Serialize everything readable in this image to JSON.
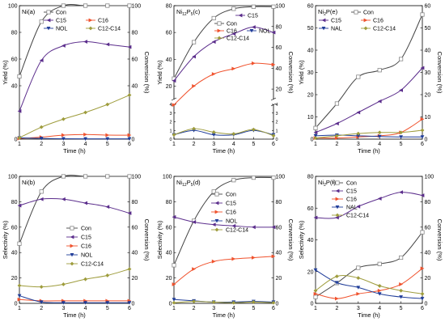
{
  "colors": {
    "Con": "#444444",
    "C15": "#5b2d8c",
    "C16": "#f0522d",
    "NOL": "#1f3c99",
    "NAL": "#1f3c99",
    "C12-C14": "#9e9c3c"
  },
  "chart_data": [
    {
      "panel": "a",
      "type": "line",
      "title": "Ni(a)",
      "xlabel": "Time (h)",
      "ylabel": "Yield (%)",
      "y2label": "Conversion (%)",
      "x": [
        1,
        2,
        3,
        4,
        5,
        6
      ],
      "xlim": [
        1,
        6
      ],
      "ylim": [
        0,
        100
      ],
      "y2lim": [
        0,
        100
      ],
      "yticks": [
        0,
        40,
        60,
        80,
        100
      ],
      "y2ticks": [
        0,
        40,
        60,
        80,
        100
      ],
      "legend_position": "top",
      "legend": [
        "Con",
        "C15",
        "C16",
        "NOL",
        "C12-C14"
      ],
      "series": [
        {
          "name": "Con",
          "axis": "right",
          "values": [
            47,
            88,
            100,
            100,
            100,
            100
          ]
        },
        {
          "name": "C15",
          "axis": "left",
          "values": [
            21,
            59,
            70,
            73,
            71,
            69
          ]
        },
        {
          "name": "C16",
          "axis": "left",
          "values": [
            0.5,
            1.5,
            3,
            3.5,
            3,
            3
          ]
        },
        {
          "name": "NOL",
          "axis": "left",
          "values": [
            1,
            0.5,
            0.3,
            0.2,
            0.2,
            0.2
          ]
        },
        {
          "name": "C12-C14",
          "axis": "left",
          "values": [
            1,
            9,
            15,
            20,
            26,
            33
          ]
        }
      ]
    },
    {
      "panel": "c",
      "type": "line",
      "title": "Ni12P5(c)",
      "title_main": "Ni",
      "title_sub1": "12",
      "title_mid": "P",
      "title_sub2": "5",
      "title_tail": "(c)",
      "xlabel": "Time (h)",
      "ylabel": "Yield (%)",
      "y2label": "Conversion (%)",
      "x": [
        1,
        2,
        3,
        4,
        5,
        6
      ],
      "xlim": [
        1,
        6
      ],
      "broken_axis": true,
      "ylim_lower": [
        0,
        4
      ],
      "ylim_upper": [
        10,
        80
      ],
      "yticks_lower": [
        0,
        1,
        2,
        3,
        4
      ],
      "yticks_upper": [
        20,
        40,
        60,
        80
      ],
      "y2ticks_lower": [
        0,
        1,
        2,
        3,
        4
      ],
      "y2ticks_upper": [
        20,
        40,
        60,
        80,
        100
      ],
      "y2_upper_range": [
        10,
        100
      ],
      "legend_position": "top-right",
      "legend": [
        "Con",
        "C15",
        "C16",
        "NOL",
        "C12-C14"
      ],
      "series": [
        {
          "name": "Con",
          "axis": "right",
          "values": [
            30,
            65,
            88,
            97,
            99,
            99
          ]
        },
        {
          "name": "C15",
          "axis": "left",
          "values": [
            24,
            42,
            53,
            59,
            64,
            60
          ]
        },
        {
          "name": "C16",
          "axis": "left",
          "values": [
            6,
            20,
            29,
            33,
            37,
            36
          ]
        },
        {
          "name": "NOL",
          "axis": "left",
          "values": [
            0.5,
            1,
            0.5,
            0.5,
            1,
            0.5
          ]
        },
        {
          "name": "C12-C14",
          "axis": "left",
          "values": [
            0.5,
            1.2,
            0.8,
            0.6,
            1.1,
            0.4
          ]
        }
      ]
    },
    {
      "panel": "e",
      "type": "line",
      "title": "Ni2P(e)",
      "title_main": "Ni",
      "title_sub1": "2",
      "title_mid": "P(e)",
      "xlabel": "Time (h)",
      "ylabel": "Yield (%)",
      "y2label": "Conversion (%)",
      "x": [
        1,
        2,
        3,
        4,
        5,
        6
      ],
      "xlim": [
        1,
        6
      ],
      "ylim": [
        0,
        60
      ],
      "y2lim": [
        0,
        60
      ],
      "yticks": [
        0,
        10,
        20,
        30,
        40,
        50,
        60
      ],
      "y2ticks": [
        0,
        10,
        20,
        30,
        40,
        50,
        60
      ],
      "legend_position": "top",
      "legend": [
        "Con",
        "C15",
        "C16",
        "NAL",
        "C12-C14"
      ],
      "series": [
        {
          "name": "Con",
          "axis": "right",
          "values": [
            5,
            16,
            28,
            31,
            36,
            56
          ]
        },
        {
          "name": "C15",
          "axis": "left",
          "values": [
            3,
            7,
            12,
            17,
            22,
            32
          ]
        },
        {
          "name": "C16",
          "axis": "left",
          "values": [
            0.5,
            0.5,
            1,
            1.5,
            3,
            9
          ]
        },
        {
          "name": "NAL",
          "axis": "left",
          "values": [
            1.5,
            1.8,
            1.5,
            1.2,
            1,
            1
          ]
        },
        {
          "name": "C12-C14",
          "axis": "left",
          "values": [
            0.5,
            1.5,
            2.5,
            3,
            3,
            4
          ]
        }
      ]
    },
    {
      "panel": "b",
      "type": "line",
      "title": "Ni(b)",
      "xlabel": "Time (h)",
      "ylabel": "Selectivity (%)",
      "y2label": "Conversion (%)",
      "x": [
        1,
        2,
        3,
        4,
        5,
        6
      ],
      "xlim": [
        1,
        6
      ],
      "ylim": [
        0,
        100
      ],
      "y2lim": [
        0,
        100
      ],
      "yticks": [
        0,
        20,
        40,
        60,
        80,
        100
      ],
      "y2ticks": [
        0,
        20,
        40,
        60,
        80,
        100
      ],
      "legend_position": "middle-right",
      "legend": [
        "Con",
        "C15",
        "C16",
        "NOL",
        "C12-C14"
      ],
      "series": [
        {
          "name": "Con",
          "axis": "right",
          "values": [
            47,
            88,
            100,
            100,
            100,
            100
          ]
        },
        {
          "name": "C15",
          "axis": "left",
          "values": [
            77,
            82,
            82,
            79,
            76,
            71
          ]
        },
        {
          "name": "C16",
          "axis": "left",
          "values": [
            3,
            2,
            2,
            2,
            2,
            2
          ]
        },
        {
          "name": "NOL",
          "axis": "left",
          "values": [
            6,
            1,
            0.5,
            0.5,
            0.5,
            0.5
          ]
        },
        {
          "name": "C12-C14",
          "axis": "left",
          "values": [
            14,
            13,
            15,
            19,
            22,
            27
          ]
        }
      ]
    },
    {
      "panel": "d",
      "type": "line",
      "title": "Ni12P5(d)",
      "title_main": "Ni",
      "title_sub1": "12",
      "title_mid": "P",
      "title_sub2": "5",
      "title_tail": "(d)",
      "xlabel": "Time (h)",
      "ylabel": "Selectivity (%)",
      "y2label": "Conversion (%)",
      "x": [
        1,
        2,
        3,
        4,
        5,
        6
      ],
      "xlim": [
        1,
        6
      ],
      "ylim": [
        0,
        100
      ],
      "y2lim": [
        0,
        100
      ],
      "yticks": [
        0,
        20,
        40,
        60,
        80,
        100
      ],
      "y2ticks": [
        0,
        20,
        40,
        60,
        80,
        100
      ],
      "legend_position": "middle-right",
      "legend": [
        "Con",
        "C15",
        "C16",
        "NOL",
        "C12-C14"
      ],
      "series": [
        {
          "name": "Con",
          "axis": "right",
          "values": [
            30,
            65,
            88,
            97,
            99,
            99
          ]
        },
        {
          "name": "C15",
          "axis": "left",
          "values": [
            68,
            64,
            62,
            61,
            60,
            60
          ]
        },
        {
          "name": "C16",
          "axis": "left",
          "values": [
            15,
            27,
            33,
            35,
            36,
            37
          ]
        },
        {
          "name": "NOL",
          "axis": "left",
          "values": [
            3,
            2,
            1,
            1,
            1.5,
            1
          ]
        },
        {
          "name": "C12-C14",
          "axis": "left",
          "values": [
            0.5,
            1.5,
            1,
            0.5,
            1,
            0.5
          ]
        }
      ]
    },
    {
      "panel": "f",
      "type": "line",
      "title": "Ni2P(f)",
      "title_main": "Ni",
      "title_sub1": "2",
      "title_mid": "P(f)",
      "xlabel": "Time (h)",
      "ylabel": "Selectivity (%)",
      "y2label": "Conversion (%)",
      "x": [
        1,
        2,
        3,
        4,
        5,
        6
      ],
      "xlim": [
        1,
        6
      ],
      "ylim": [
        0,
        80
      ],
      "y2lim": [
        0,
        100
      ],
      "yticks": [
        0,
        20,
        40,
        60,
        80
      ],
      "y2ticks": [
        0,
        20,
        40,
        60,
        80,
        100
      ],
      "legend_position": "top-right",
      "legend": [
        "Con",
        "C15",
        "C16",
        "NAL",
        "C12-C14"
      ],
      "series": [
        {
          "name": "Con",
          "axis": "right",
          "values": [
            5,
            16,
            28,
            31,
            36,
            56
          ]
        },
        {
          "name": "C15",
          "axis": "left",
          "values": [
            54,
            54,
            61,
            66,
            70,
            68
          ]
        },
        {
          "name": "C16",
          "axis": "left",
          "values": [
            6,
            3,
            6,
            8,
            12,
            22
          ]
        },
        {
          "name": "NAL",
          "axis": "left",
          "values": [
            21,
            13,
            10,
            6,
            4,
            3
          ]
        },
        {
          "name": "C12-C14",
          "axis": "left",
          "values": [
            8,
            17,
            16,
            11,
            8,
            6
          ]
        }
      ]
    }
  ]
}
